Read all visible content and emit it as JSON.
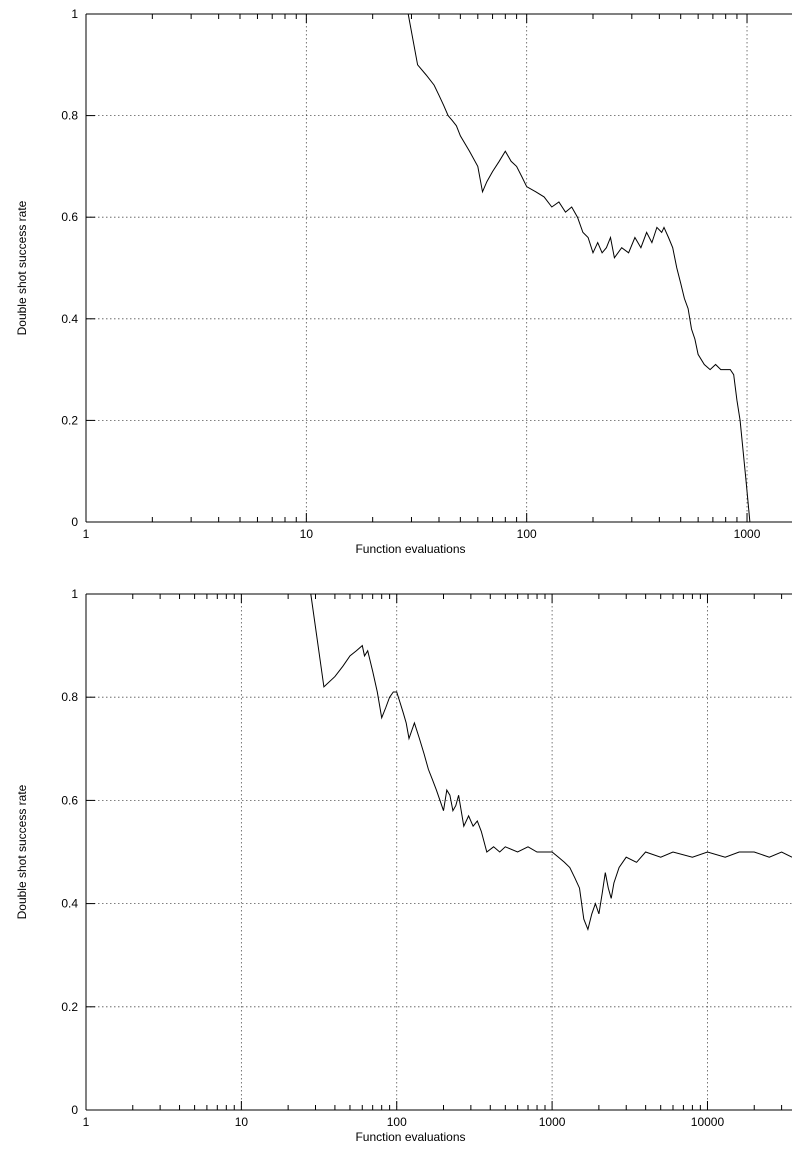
{
  "chart_data": [
    {
      "type": "line",
      "xlabel": "Function evaluations",
      "ylabel": "Double shot success rate",
      "xscale": "log",
      "xlim": [
        1,
        1600
      ],
      "ylim": [
        0,
        1
      ],
      "grid": true,
      "x_ticks": [
        1,
        10,
        100,
        1000
      ],
      "x_tick_labels": [
        "1",
        "10",
        "100",
        "1000"
      ],
      "y_ticks": [
        0,
        0.2,
        0.4,
        0.6,
        0.8,
        1
      ],
      "y_tick_labels": [
        "0",
        "0.2",
        "0.4",
        "0.6",
        "0.8",
        "1"
      ],
      "series": [
        {
          "color": "#000000",
          "x": [
            29,
            32,
            35,
            38,
            40,
            42,
            44,
            46,
            48,
            50,
            55,
            60,
            63,
            66,
            70,
            75,
            80,
            85,
            90,
            95,
            100,
            110,
            120,
            130,
            140,
            150,
            160,
            170,
            180,
            190,
            200,
            210,
            220,
            230,
            240,
            250,
            270,
            290,
            310,
            330,
            350,
            370,
            390,
            410,
            420,
            440,
            460,
            480,
            500,
            520,
            540,
            560,
            580,
            600,
            640,
            680,
            720,
            760,
            800,
            840,
            870,
            900,
            930,
            960,
            990,
            1010,
            1030
          ],
          "y": [
            1.0,
            0.9,
            0.88,
            0.86,
            0.84,
            0.82,
            0.8,
            0.79,
            0.78,
            0.76,
            0.73,
            0.7,
            0.65,
            0.67,
            0.69,
            0.71,
            0.73,
            0.71,
            0.7,
            0.68,
            0.66,
            0.65,
            0.64,
            0.62,
            0.63,
            0.61,
            0.62,
            0.6,
            0.57,
            0.56,
            0.53,
            0.55,
            0.53,
            0.54,
            0.56,
            0.52,
            0.54,
            0.53,
            0.56,
            0.54,
            0.57,
            0.55,
            0.58,
            0.57,
            0.58,
            0.56,
            0.54,
            0.5,
            0.47,
            0.44,
            0.42,
            0.38,
            0.36,
            0.33,
            0.31,
            0.3,
            0.31,
            0.3,
            0.3,
            0.3,
            0.29,
            0.24,
            0.2,
            0.14,
            0.08,
            0.04,
            0.0
          ]
        }
      ]
    },
    {
      "type": "line",
      "xlabel": "Function evaluations",
      "ylabel": "Double shot success rate",
      "xscale": "log",
      "xlim": [
        1,
        35000
      ],
      "ylim": [
        0,
        1
      ],
      "grid": true,
      "x_ticks": [
        1,
        10,
        100,
        1000,
        10000
      ],
      "x_tick_labels": [
        "1",
        "10",
        "100",
        "1000",
        "10000"
      ],
      "y_ticks": [
        0,
        0.2,
        0.4,
        0.6,
        0.8,
        1
      ],
      "y_tick_labels": [
        "0",
        "0.2",
        "0.4",
        "0.6",
        "0.8",
        "1"
      ],
      "series": [
        {
          "color": "#000000",
          "x": [
            28,
            34,
            40,
            45,
            50,
            55,
            60,
            62,
            65,
            70,
            75,
            80,
            85,
            90,
            95,
            100,
            105,
            110,
            115,
            120,
            130,
            140,
            150,
            160,
            170,
            180,
            190,
            200,
            210,
            220,
            230,
            240,
            250,
            270,
            290,
            310,
            330,
            350,
            380,
            420,
            460,
            500,
            600,
            700,
            800,
            900,
            1000,
            1100,
            1200,
            1300,
            1400,
            1500,
            1600,
            1700,
            1800,
            1900,
            2000,
            2100,
            2200,
            2300,
            2400,
            2500,
            2700,
            3000,
            3500,
            4000,
            5000,
            6000,
            8000,
            10000,
            13000,
            16000,
            20000,
            25000,
            30000,
            35000
          ],
          "y": [
            1.0,
            0.82,
            0.84,
            0.86,
            0.88,
            0.89,
            0.9,
            0.88,
            0.89,
            0.85,
            0.81,
            0.76,
            0.78,
            0.8,
            0.81,
            0.81,
            0.79,
            0.77,
            0.75,
            0.72,
            0.75,
            0.72,
            0.69,
            0.66,
            0.64,
            0.62,
            0.6,
            0.58,
            0.62,
            0.61,
            0.58,
            0.59,
            0.61,
            0.55,
            0.57,
            0.55,
            0.56,
            0.54,
            0.5,
            0.51,
            0.5,
            0.51,
            0.5,
            0.51,
            0.5,
            0.5,
            0.5,
            0.49,
            0.48,
            0.47,
            0.45,
            0.43,
            0.37,
            0.35,
            0.38,
            0.4,
            0.38,
            0.42,
            0.46,
            0.43,
            0.41,
            0.44,
            0.47,
            0.49,
            0.48,
            0.5,
            0.49,
            0.5,
            0.49,
            0.5,
            0.49,
            0.5,
            0.5,
            0.49,
            0.5,
            0.49
          ]
        }
      ]
    }
  ]
}
